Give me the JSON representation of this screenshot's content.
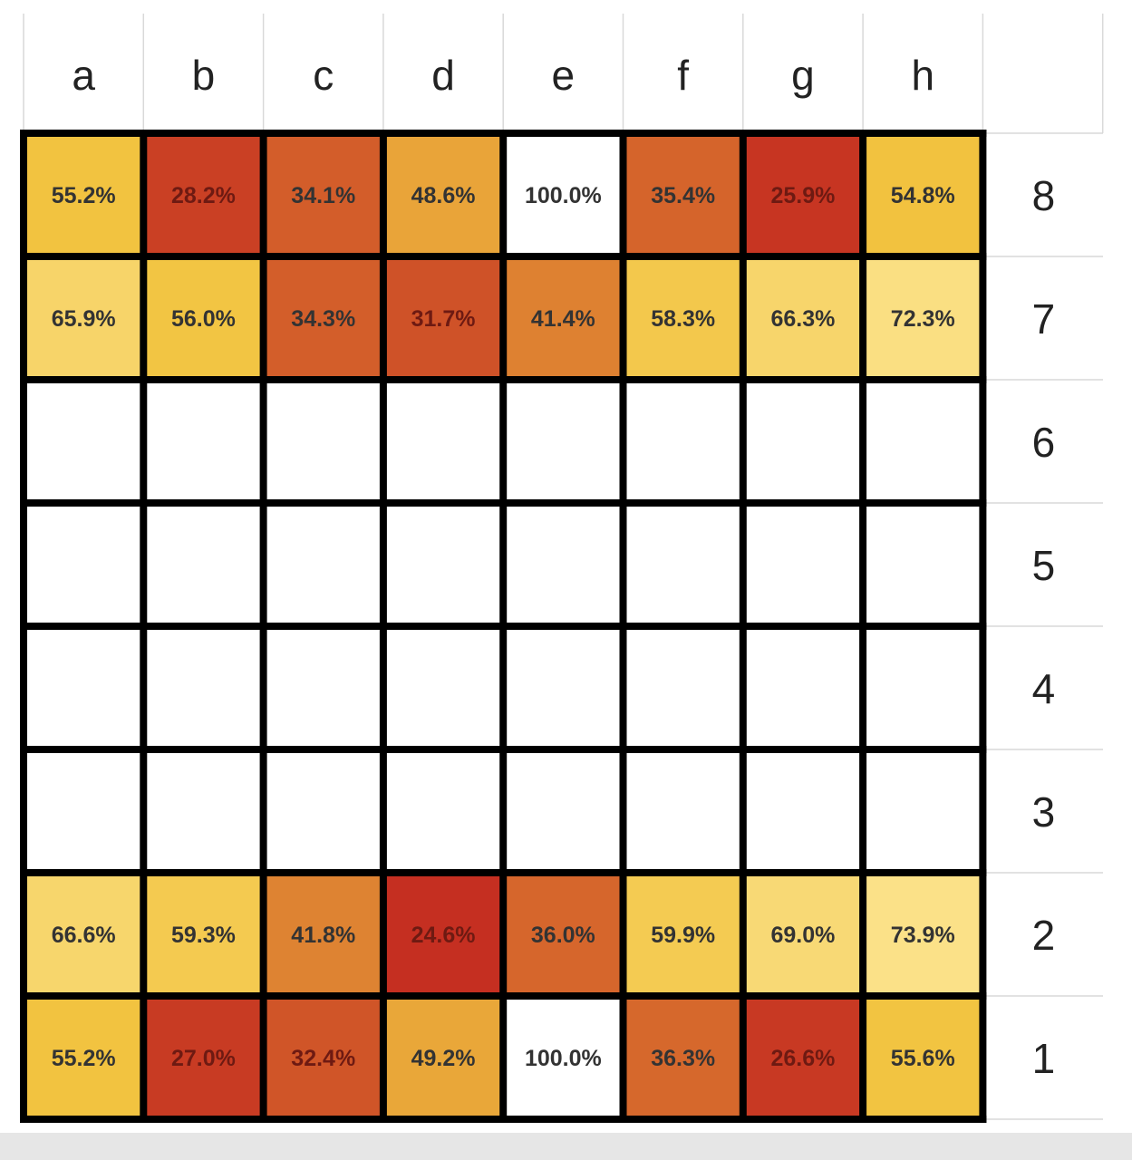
{
  "chart_data": {
    "type": "heatmap",
    "title": "",
    "xlabel": "",
    "ylabel": "",
    "x_categories": [
      "a",
      "b",
      "c",
      "d",
      "e",
      "f",
      "g",
      "h"
    ],
    "y_categories": [
      "8",
      "7",
      "6",
      "5",
      "4",
      "3",
      "2",
      "1"
    ],
    "value_suffix": "%",
    "rows": [
      {
        "rank": "8",
        "values": [
          55.2,
          28.2,
          34.1,
          48.6,
          100.0,
          35.4,
          25.9,
          54.8
        ]
      },
      {
        "rank": "7",
        "values": [
          65.9,
          56.0,
          34.3,
          31.7,
          41.4,
          58.3,
          66.3,
          72.3
        ]
      },
      {
        "rank": "6",
        "values": [
          null,
          null,
          null,
          null,
          null,
          null,
          null,
          null
        ]
      },
      {
        "rank": "5",
        "values": [
          null,
          null,
          null,
          null,
          null,
          null,
          null,
          null
        ]
      },
      {
        "rank": "4",
        "values": [
          null,
          null,
          null,
          null,
          null,
          null,
          null,
          null
        ]
      },
      {
        "rank": "3",
        "values": [
          null,
          null,
          null,
          null,
          null,
          null,
          null,
          null
        ]
      },
      {
        "rank": "2",
        "values": [
          66.6,
          59.3,
          41.8,
          24.6,
          36.0,
          59.9,
          69.0,
          73.9
        ]
      },
      {
        "rank": "1",
        "values": [
          55.2,
          27.0,
          32.4,
          49.2,
          100.0,
          36.3,
          26.6,
          55.6
        ]
      }
    ],
    "color_scale": {
      "low_color": "#c42c20",
      "mid_color": "#f2c33f",
      "high_color": "#fbe38c",
      "max_color": "#ffffff",
      "empty_color": "#ffffff"
    },
    "grid": true,
    "legend": "none"
  }
}
